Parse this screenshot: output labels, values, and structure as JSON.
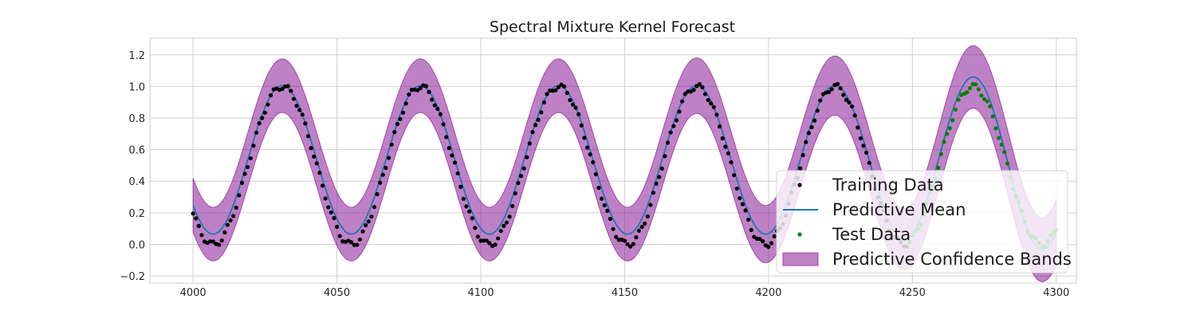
{
  "chart_data": {
    "type": "line",
    "title": "Spectral Mixture Kernel Forecast",
    "xlabel": "",
    "ylabel": "",
    "xlim": [
      3985,
      4307
    ],
    "ylim": [
      -0.245,
      1.305
    ],
    "x_ticks": [
      4000,
      4050,
      4100,
      4150,
      4200,
      4250,
      4300
    ],
    "x_tick_labels": [
      "4000",
      "4050",
      "4100",
      "4150",
      "4200",
      "4250",
      "4300"
    ],
    "y_ticks": [
      -0.2,
      0.0,
      0.2,
      0.4,
      0.6,
      0.8,
      1.0,
      1.2
    ],
    "y_tick_labels": [
      "−0.2",
      "0.0",
      "0.2",
      "0.4",
      "0.6",
      "0.8",
      "1.0",
      "1.2"
    ],
    "grid": true,
    "legend_position": "lower-right",
    "period": 48,
    "train_range": [
      4000,
      4248
    ],
    "test_range": [
      4248,
      4300
    ],
    "series": [
      {
        "name": "Training Data",
        "kind": "scatter",
        "color": "#000000",
        "x_range": [
          4000,
          4248
        ],
        "description": "daily-sampled points of a smooth periodic signal oscillating between about 0.0 and 1.0"
      },
      {
        "name": "Predictive Mean",
        "kind": "line",
        "color": "#1f77b4",
        "x_range": [
          4000,
          4300
        ],
        "peaks": [
          [
            4031,
            1.0
          ],
          [
            4079,
            1.0
          ],
          [
            4127,
            1.0
          ],
          [
            4175,
            1.0
          ],
          [
            4223,
            1.02
          ],
          [
            4271,
            1.06
          ]
        ],
        "troughs": [
          [
            4007,
            0.06
          ],
          [
            4055,
            0.06
          ],
          [
            4103,
            0.07
          ],
          [
            4151,
            0.07
          ],
          [
            4199,
            0.06
          ],
          [
            4247,
            0.05
          ],
          [
            4295,
            0.0
          ]
        ]
      },
      {
        "name": "Test Data",
        "kind": "scatter",
        "color": "#008000",
        "x_range": [
          4248,
          4300
        ]
      },
      {
        "name": "Predictive Confidence Bands",
        "kind": "band",
        "color": "#8b1a95",
        "upper_peaks": [
          [
            4031,
            1.17
          ],
          [
            4079,
            1.16
          ],
          [
            4127,
            1.16
          ],
          [
            4175,
            1.17
          ],
          [
            4223,
            1.19
          ],
          [
            4271,
            1.23
          ]
        ],
        "lower_troughs": [
          [
            4007,
            -0.11
          ],
          [
            4055,
            -0.1
          ],
          [
            4103,
            -0.09
          ],
          [
            4151,
            -0.09
          ],
          [
            4199,
            -0.1
          ],
          [
            4247,
            -0.12
          ],
          [
            4295,
            -0.19
          ]
        ]
      }
    ]
  }
}
